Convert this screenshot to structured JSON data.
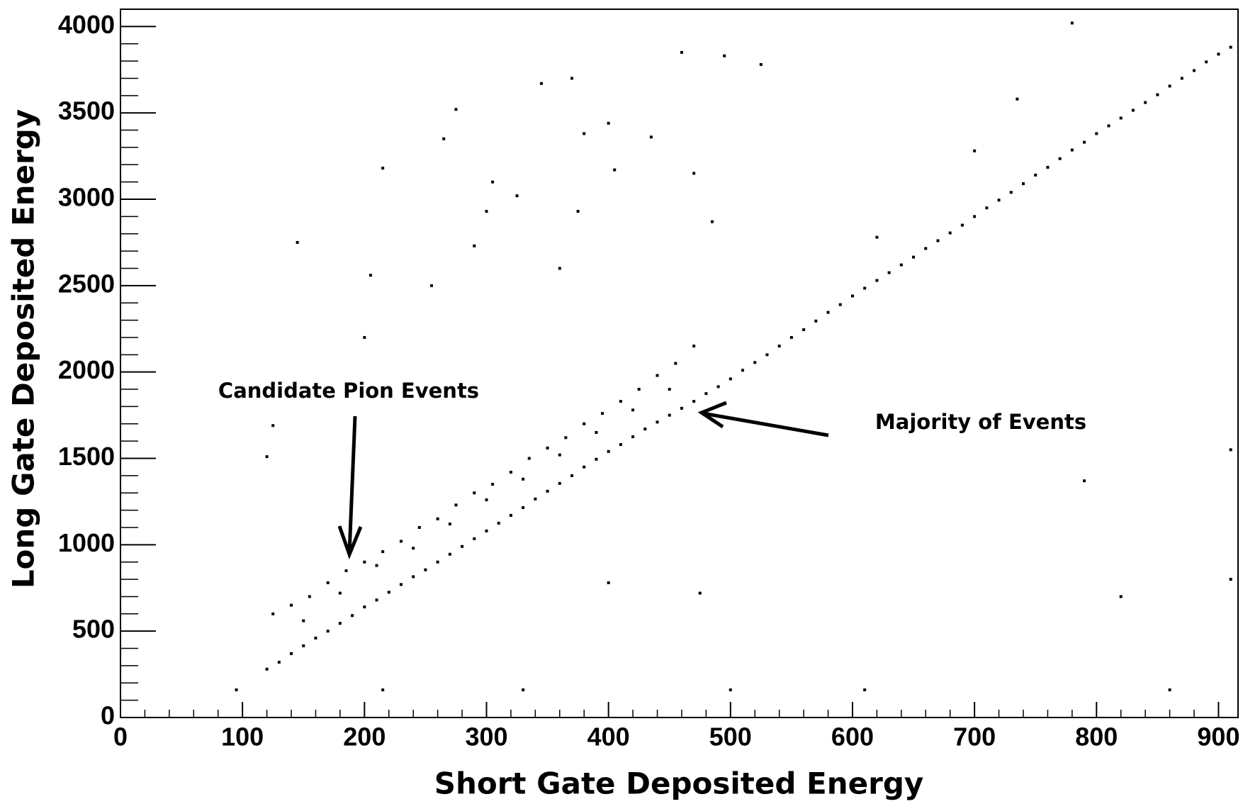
{
  "chart_data": {
    "type": "scatter",
    "x_label": "Short Gate Deposited Energy",
    "y_label": "Long Gate Deposited Energy",
    "annotations": [
      "Candidate Pion Events",
      "Majority of Events"
    ],
    "color": "#000000",
    "xlim": [
      0,
      916
    ],
    "ylim": [
      0,
      4100
    ],
    "xticks": [
      0,
      100,
      200,
      300,
      400,
      500,
      600,
      700,
      800,
      900
    ],
    "yticks": [
      0,
      500,
      1000,
      1500,
      2000,
      2500,
      3000,
      3500,
      4000
    ],
    "xticks_minor": [
      20,
      40,
      60,
      80,
      120,
      140,
      160,
      180,
      220,
      240,
      260,
      280,
      320,
      340,
      360,
      380,
      420,
      440,
      460,
      480,
      520,
      540,
      560,
      580,
      620,
      640,
      660,
      680,
      720,
      740,
      760,
      780,
      820,
      840,
      860,
      880
    ],
    "yticks_minor": [
      100,
      200,
      300,
      400,
      600,
      700,
      800,
      900,
      1100,
      1200,
      1300,
      1400,
      1600,
      1700,
      1800,
      1900,
      2100,
      2200,
      2300,
      2400,
      2600,
      2700,
      2800,
      2900,
      3100,
      3200,
      3300,
      3400,
      3600,
      3700,
      3800,
      3900
    ],
    "x": [
      120,
      140,
      160,
      180,
      200,
      220,
      240,
      260,
      280,
      300,
      320,
      340,
      360,
      380,
      400,
      420,
      440,
      460,
      480,
      500,
      520,
      540,
      560,
      580,
      600,
      620,
      640,
      660,
      680,
      700,
      720,
      740,
      760,
      780,
      800,
      820,
      840,
      860,
      880,
      900,
      910,
      130,
      150,
      170,
      190,
      210,
      230,
      250,
      270,
      290,
      310,
      330,
      350,
      370,
      390,
      410,
      430,
      450,
      470,
      490,
      510,
      530,
      550,
      570,
      590,
      610,
      630,
      650,
      670,
      690,
      710,
      730,
      750,
      770,
      790,
      810,
      830,
      850,
      870,
      890,
      125,
      140,
      155,
      170,
      185,
      200,
      215,
      230,
      245,
      260,
      275,
      290,
      305,
      320,
      335,
      350,
      365,
      380,
      395,
      410,
      425,
      440,
      455,
      470,
      150,
      180,
      210,
      240,
      270,
      300,
      330,
      360,
      390,
      420,
      450,
      145,
      205,
      215,
      255,
      265,
      275,
      290,
      300,
      305,
      325,
      345,
      360,
      370,
      375,
      380,
      400,
      405,
      435,
      470,
      485,
      525,
      460,
      495,
      620,
      700,
      735,
      120,
      125,
      200,
      475,
      400,
      790,
      820,
      910,
      910,
      95,
      215,
      330,
      500,
      610,
      780,
      860
    ],
    "values": [
      280,
      370,
      460,
      545,
      640,
      725,
      815,
      900,
      990,
      1080,
      1170,
      1265,
      1355,
      1450,
      1540,
      1625,
      1710,
      1790,
      1875,
      1960,
      2055,
      2150,
      2245,
      2345,
      2440,
      2530,
      2620,
      2715,
      2805,
      2900,
      2995,
      3090,
      3185,
      3285,
      3380,
      3470,
      3560,
      3655,
      3745,
      3840,
      3880,
      320,
      415,
      500,
      590,
      680,
      770,
      855,
      945,
      1035,
      1125,
      1215,
      1310,
      1400,
      1495,
      1580,
      1670,
      1750,
      1830,
      1915,
      2010,
      2100,
      2200,
      2295,
      2390,
      2485,
      2575,
      2665,
      2760,
      2850,
      2950,
      3040,
      3140,
      3235,
      3330,
      3425,
      3515,
      3605,
      3700,
      3795,
      600,
      650,
      700,
      780,
      850,
      900,
      960,
      1020,
      1100,
      1150,
      1230,
      1300,
      1350,
      1420,
      1500,
      1560,
      1620,
      1700,
      1760,
      1830,
      1900,
      1980,
      2050,
      2150,
      560,
      720,
      880,
      980,
      1120,
      1260,
      1380,
      1520,
      1650,
      1780,
      1900,
      2750,
      2560,
      3180,
      2500,
      3350,
      3520,
      2730,
      2930,
      3100,
      3020,
      3670,
      2600,
      3700,
      2930,
      3380,
      3440,
      3170,
      3360,
      3150,
      2870,
      3780,
      3850,
      3830,
      2780,
      3280,
      3580,
      1510,
      1690,
      2200,
      720,
      780,
      1370,
      700,
      800,
      1550,
      160,
      160,
      160,
      160,
      160,
      4020,
      160
    ]
  }
}
